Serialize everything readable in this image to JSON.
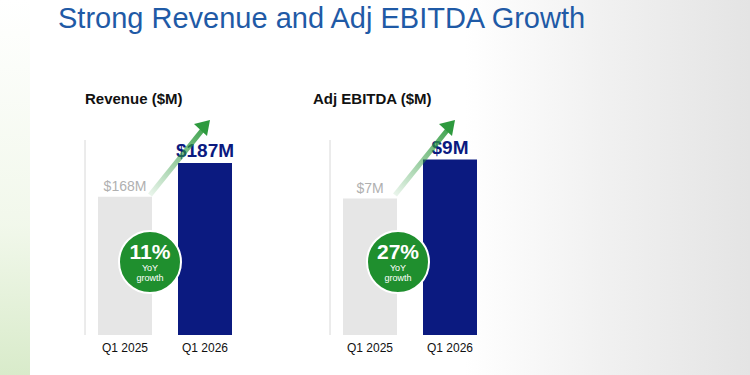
{
  "title": "Strong Revenue and Adj EBITDA Growth",
  "chart_data": [
    {
      "type": "bar",
      "title": "Revenue ($M)",
      "categories": [
        "Q1 2025",
        "Q1 2026"
      ],
      "values": [
        168,
        187
      ],
      "value_labels": [
        "$168M",
        "$187M"
      ],
      "colors": [
        "#e6e6e6",
        "#0b1a80"
      ],
      "ylim": [
        90,
        200
      ],
      "tick_labels": "x",
      "data_labels": true,
      "annotations": [
        {
          "value": 11,
          "label": "11%",
          "text": "YoY growth"
        }
      ]
    },
    {
      "type": "bar",
      "title": "Adj EBITDA ($M)",
      "categories": [
        "Q1 2025",
        "Q1 2026"
      ],
      "values": [
        7,
        9
      ],
      "value_labels": [
        "$7M",
        "$9M"
      ],
      "colors": [
        "#e6e6e6",
        "#0b1a80"
      ],
      "ylim": [
        0,
        10
      ],
      "tick_labels": "x",
      "data_labels": true,
      "annotations": [
        {
          "value": 27,
          "label": "27%",
          "text": "YoY growth"
        }
      ]
    }
  ]
}
